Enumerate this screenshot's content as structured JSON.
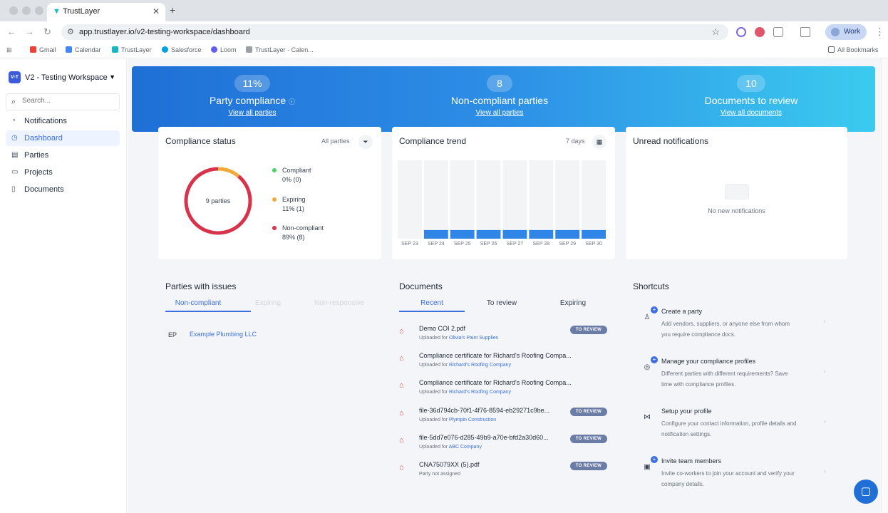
{
  "browser": {
    "tab_title": "TrustLayer",
    "url": "app.trustlayer.io/v2-testing-workspace/dashboard",
    "profile_label": "Work",
    "bookmarks": [
      "Gmail",
      "Calendar",
      "TrustLayer",
      "Salesforce",
      "Loom",
      "TrustLayer - Calen..."
    ],
    "all_bookmarks": "All Bookmarks"
  },
  "sidebar": {
    "workspace_badge": "V-T",
    "workspace_name": "V2 - Testing Workspace",
    "search_placeholder": "Search...",
    "items": [
      {
        "label": "Notifications",
        "icon": "bell-icon"
      },
      {
        "label": "Dashboard",
        "icon": "dashboard-icon",
        "active": true
      },
      {
        "label": "Parties",
        "icon": "parties-icon"
      },
      {
        "label": "Projects",
        "icon": "folder-icon"
      },
      {
        "label": "Documents",
        "icon": "document-icon"
      }
    ]
  },
  "hero": {
    "kpis": [
      {
        "value": "11%",
        "label": "Party compliance",
        "link": "View all parties"
      },
      {
        "value": "8",
        "label": "Non-compliant parties",
        "link": "View all parties"
      },
      {
        "value": "10",
        "label": "Documents to review",
        "link": "View all documents"
      }
    ],
    "gradient": [
      "#1f6fd6",
      "#3bcbef"
    ]
  },
  "compliance_status": {
    "title": "Compliance status",
    "filter_label": "All parties",
    "center_label": "9 parties",
    "legend": [
      {
        "name": "Compliant",
        "value": "0% (0)",
        "color": "#4ccf6b"
      },
      {
        "name": "Expiring",
        "value": "11% (1)",
        "color": "#f0a93a"
      },
      {
        "name": "Non-compliant",
        "value": "89% (8)",
        "color": "#d7334a"
      }
    ]
  },
  "compliance_trend": {
    "title": "Compliance trend",
    "range_label": "7 days"
  },
  "chart_data": {
    "type": "bar",
    "categories": [
      "SEP 23",
      "SEP 24",
      "SEP 25",
      "SEP 26",
      "SEP 27",
      "SEP 28",
      "SEP 29",
      "SEP 30"
    ],
    "values": [
      0,
      11,
      11,
      11,
      11,
      11,
      11,
      11
    ],
    "ylim": [
      0,
      100
    ],
    "grid": false,
    "bar_color": "#2f86e6",
    "background_color": "#f3f4f6"
  },
  "notifications": {
    "title": "Unread notifications",
    "empty_text": "No new notifications"
  },
  "parties_with_issues": {
    "title": "Parties with issues",
    "tabs": [
      "Non-compliant",
      "Expiring",
      "Non-responsive"
    ],
    "rows": [
      {
        "initials": "EP",
        "name": "Example Plumbing LLC"
      }
    ]
  },
  "documents": {
    "title": "Documents",
    "tabs": [
      "Recent",
      "To review",
      "Expiring"
    ],
    "rows": [
      {
        "name": "Demo COI 2.pdf",
        "prefix": "Uploaded for",
        "party": "Olivia's Paint Supplies",
        "badge": "TO REVIEW"
      },
      {
        "name": "Compliance certificate for Richard's Roofing Compa...",
        "prefix": "Uploaded for",
        "party": "Richard's Roofing Company",
        "badge": ""
      },
      {
        "name": "Compliance certificate for Richard's Roofing Compa...",
        "prefix": "Uploaded for",
        "party": "Richard's Roofing Company",
        "badge": ""
      },
      {
        "name": "file-36d794cb-70f1-4f76-8594-eb29271c9be...",
        "prefix": "Uploaded for",
        "party": "Plympin Construction",
        "badge": "TO REVIEW"
      },
      {
        "name": "file-5dd7e076-d285-49b9-a70e-bfd2a30d60...",
        "prefix": "Uploaded for",
        "party": "ABC Company",
        "badge": "TO REVIEW"
      },
      {
        "name": "CNA75079XX (5).pdf",
        "prefix": "Party not assigned",
        "party": "",
        "badge": "TO REVIEW"
      }
    ]
  },
  "shortcuts": {
    "title": "Shortcuts",
    "items": [
      {
        "title": "Create a party",
        "desc": "Add vendors, suppliers, or anyone else from whom you require compliance docs.",
        "icon": "user-plus-icon",
        "plus": true
      },
      {
        "title": "Manage your compliance profiles",
        "desc": "Different parties with different requirements? Save time with compliance profiles.",
        "icon": "profile-settings-icon",
        "plus": true
      },
      {
        "title": "Setup your profile",
        "desc": "Configure your contact information, profile details and notification settings.",
        "icon": "settings-sliders-icon",
        "plus": false
      },
      {
        "title": "Invite team members",
        "desc": "Invite co-workers to join your account and verify your company details.",
        "icon": "invite-icon",
        "plus": true
      }
    ]
  }
}
